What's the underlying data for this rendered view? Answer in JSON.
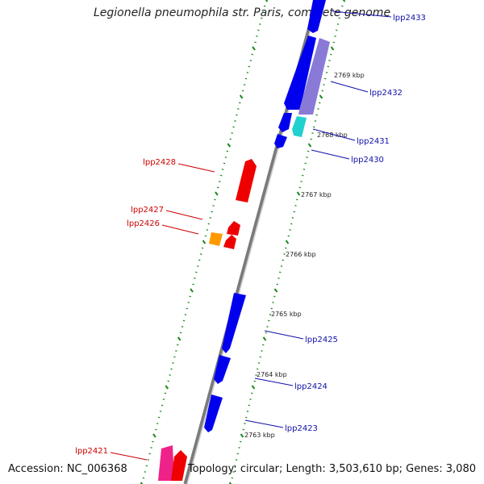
{
  "title": "Legionella pneumophila str. Paris, complete genome",
  "accession": "Accession: NC_006368",
  "topology": "Topology: circular; Length: 3,503,610 bp; Genes: 3,080",
  "colors": {
    "backbone": "#8c8c8c",
    "ticks": "#1a8a1a",
    "gene_forward": "#0000ee",
    "gene_reverse": "#ee0000",
    "label_forward": "#1010aa",
    "label_reverse": "#cc0000"
  },
  "scale_labels": [
    "2763 kbp",
    "2764 kbp",
    "2765 kbp",
    "2766 kbp",
    "2767 kbp",
    "2768 kbp",
    "2769 kbp"
  ],
  "genes_forward": [
    {
      "label": "lpp2433",
      "color": "#0000ee"
    },
    {
      "label": "lpp2432",
      "color": "#8a7ad8"
    },
    {
      "label": "lpp2431",
      "color": "#22d0d0"
    },
    {
      "label": "lpp2430",
      "color": "#0000ee"
    },
    {
      "label": "lpp2425",
      "color": "#0000ee"
    },
    {
      "label": "lpp2424",
      "color": "#0000ee"
    },
    {
      "label": "lpp2423",
      "color": "#0000ee"
    }
  ],
  "genes_reverse": [
    {
      "label": "lpp2428",
      "color": "#ee0000"
    },
    {
      "label": "lpp2427",
      "color": "#ee0000"
    },
    {
      "label": "lpp2426",
      "color": "#ff9900"
    },
    {
      "label": "lpp2421",
      "color": "#ee2288"
    }
  ]
}
